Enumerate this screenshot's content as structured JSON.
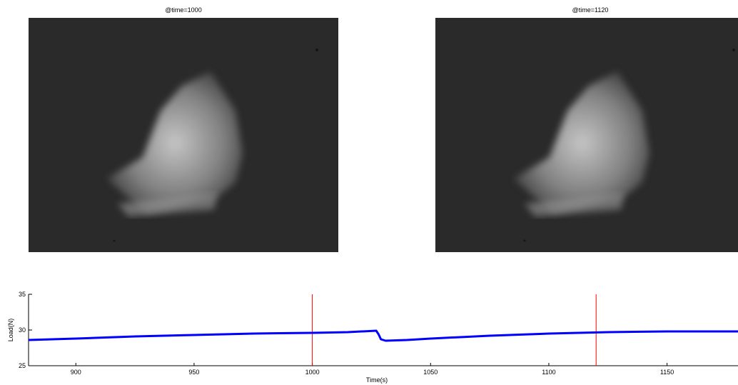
{
  "images": [
    {
      "title": "@time=1000"
    },
    {
      "title": "@time=1120"
    }
  ],
  "chart_data": {
    "type": "line",
    "title": "",
    "xlabel": "Time(s)",
    "ylabel": "Load(N)",
    "xlim": [
      880,
      1180
    ],
    "ylim": [
      25,
      35
    ],
    "xticks": [
      900,
      950,
      1000,
      1050,
      1100,
      1150
    ],
    "yticks": [
      25,
      30,
      35
    ],
    "series": [
      {
        "color": "#0000ff",
        "x": [
          880,
          900,
          925,
          950,
          975,
          1000,
          1015,
          1027,
          1028,
          1029,
          1031,
          1040,
          1050,
          1075,
          1100,
          1125,
          1150,
          1180
        ],
        "y": [
          28.6,
          28.8,
          29.1,
          29.3,
          29.5,
          29.6,
          29.7,
          29.9,
          29.4,
          28.7,
          28.5,
          28.6,
          28.8,
          29.2,
          29.5,
          29.7,
          29.8,
          29.8
        ]
      }
    ],
    "vlines": [
      {
        "x": 1000,
        "color": "#ff0000"
      },
      {
        "x": 1120,
        "color": "#ff0000"
      }
    ]
  }
}
